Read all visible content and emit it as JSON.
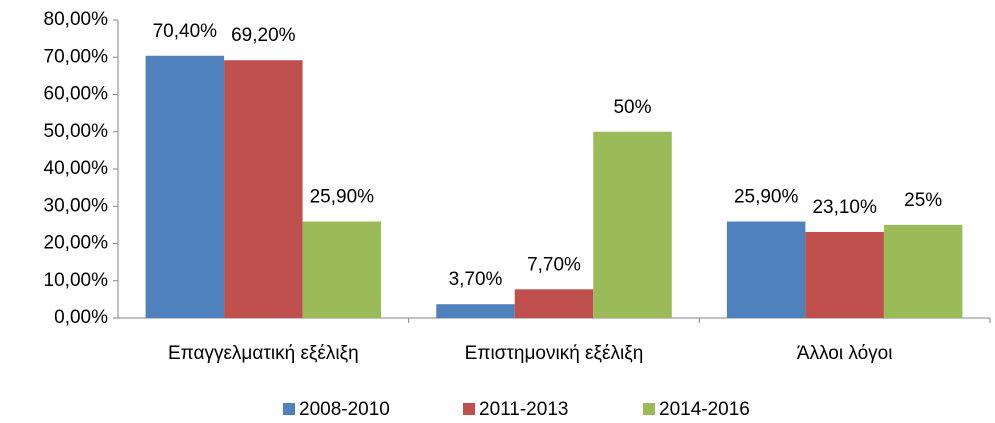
{
  "chart_data": {
    "type": "bar",
    "categories": [
      "Επαγγελματική εξέλιξη",
      "Επιστημονική εξέλιξη",
      "Άλλοι λόγοι"
    ],
    "series": [
      {
        "name": "2008-2010",
        "color": "#4f81bd",
        "values": [
          70.4,
          3.7,
          25.9
        ],
        "value_labels": [
          "70,40%",
          "3,70%",
          "25,90%"
        ]
      },
      {
        "name": "2011-2013",
        "color": "#c0504d",
        "values": [
          69.2,
          7.7,
          23.1
        ],
        "value_labels": [
          "69,20%",
          "7,70%",
          "23,10%"
        ]
      },
      {
        "name": "2014-2016",
        "color": "#9bbb59",
        "values": [
          25.9,
          50,
          25
        ],
        "value_labels": [
          "25,90%",
          "50%",
          "25%"
        ]
      }
    ],
    "ylim": [
      0,
      80
    ],
    "yticks": [
      {
        "value": 0,
        "label": "0,00%"
      },
      {
        "value": 10,
        "label": "10,00%"
      },
      {
        "value": 20,
        "label": "20,00%"
      },
      {
        "value": 30,
        "label": "30,00%"
      },
      {
        "value": 40,
        "label": "40,00%"
      },
      {
        "value": 50,
        "label": "50,00%"
      },
      {
        "value": 60,
        "label": "60,00%"
      },
      {
        "value": 70,
        "label": "70,00%"
      },
      {
        "value": 80,
        "label": "80,00%"
      }
    ],
    "grid": false,
    "legend": "bottom"
  }
}
